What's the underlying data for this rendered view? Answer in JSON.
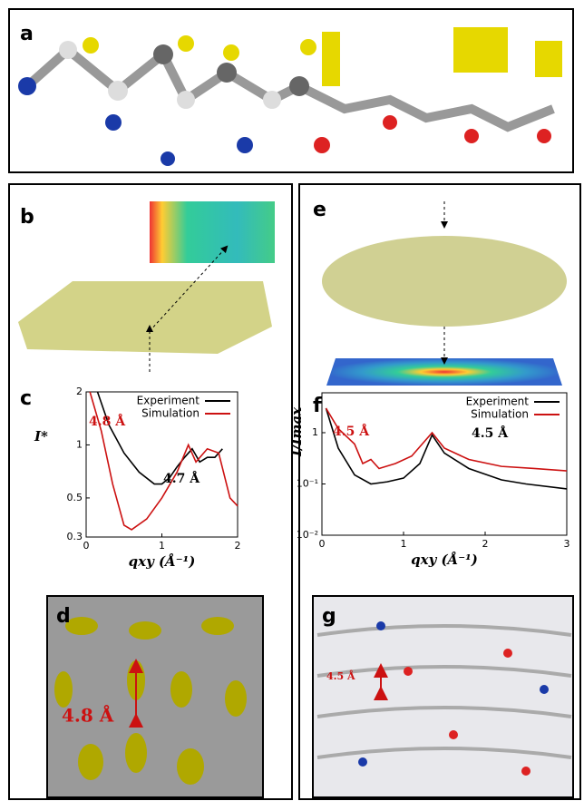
{
  "panels": {
    "a": "a",
    "b": "b",
    "c": "c",
    "d": "d",
    "e": "e",
    "f": "f",
    "g": "g"
  },
  "d_annotation": "4.8 Å",
  "g_annotation": "4.5 Å",
  "chart_data": [
    {
      "type": "line",
      "ylabel": "I*",
      "xlabel": "qxy (Å⁻¹)",
      "log_y": true,
      "xlim": [
        0,
        2
      ],
      "xticks": [
        0,
        1,
        2
      ],
      "ylim": [
        0.3,
        2
      ],
      "yticks": [
        0.3,
        0.5,
        1,
        2
      ],
      "legend": "top-right",
      "series": [
        {
          "name": "Experiment",
          "color": "#000000",
          "x": [
            0.15,
            0.3,
            0.5,
            0.7,
            0.9,
            1.0,
            1.1,
            1.2,
            1.3,
            1.4,
            1.5,
            1.6,
            1.7,
            1.8
          ],
          "values": [
            2,
            1.3,
            0.9,
            0.7,
            0.6,
            0.6,
            0.65,
            0.75,
            0.85,
            0.95,
            0.8,
            0.85,
            0.85,
            0.95
          ]
        },
        {
          "name": "Simulation",
          "color": "#cc1111",
          "x": [
            0.05,
            0.2,
            0.35,
            0.5,
            0.6,
            0.8,
            1.0,
            1.2,
            1.35,
            1.45,
            1.6,
            1.75,
            1.9,
            2.0
          ],
          "values": [
            2,
            1.2,
            0.6,
            0.35,
            0.33,
            0.38,
            0.5,
            0.7,
            1.0,
            0.8,
            0.95,
            0.9,
            0.5,
            0.45
          ]
        }
      ],
      "annotations": [
        {
          "text": "4.8 Å",
          "color": "#cc1111"
        },
        {
          "text": "4.7 Å",
          "color": "#000000"
        }
      ]
    },
    {
      "type": "line",
      "ylabel": "I/Imax",
      "xlabel": "qxy (Å⁻¹)",
      "log_y": true,
      "xlim": [
        0,
        3
      ],
      "xticks": [
        0,
        1,
        2,
        3
      ],
      "ylim": [
        0.01,
        6
      ],
      "yticks": [
        {
          "value": 0.01,
          "label": "10⁻²"
        },
        {
          "value": 0.1,
          "label": "10⁻¹"
        },
        1
      ],
      "legend": "top-right",
      "series": [
        {
          "name": "Experiment",
          "color": "#000000",
          "x": [
            0.05,
            0.2,
            0.4,
            0.6,
            0.8,
            1.0,
            1.2,
            1.35,
            1.5,
            1.8,
            2.2,
            2.5,
            3
          ],
          "values": [
            3,
            0.5,
            0.15,
            0.1,
            0.11,
            0.13,
            0.25,
            0.9,
            0.4,
            0.2,
            0.12,
            0.1,
            0.08
          ]
        },
        {
          "name": "Simulation",
          "color": "#cc1111",
          "x": [
            0.05,
            0.2,
            0.4,
            0.5,
            0.6,
            0.7,
            0.9,
            1.1,
            1.35,
            1.5,
            1.8,
            2.2,
            2.6,
            3
          ],
          "values": [
            3,
            1.2,
            0.6,
            0.25,
            0.3,
            0.2,
            0.25,
            0.35,
            1.0,
            0.5,
            0.3,
            0.22,
            0.2,
            0.18
          ]
        }
      ],
      "annotations": [
        {
          "text": "4.5 Å",
          "color": "#cc1111"
        },
        {
          "text": "4.5 Å",
          "color": "#000000"
        }
      ]
    }
  ]
}
